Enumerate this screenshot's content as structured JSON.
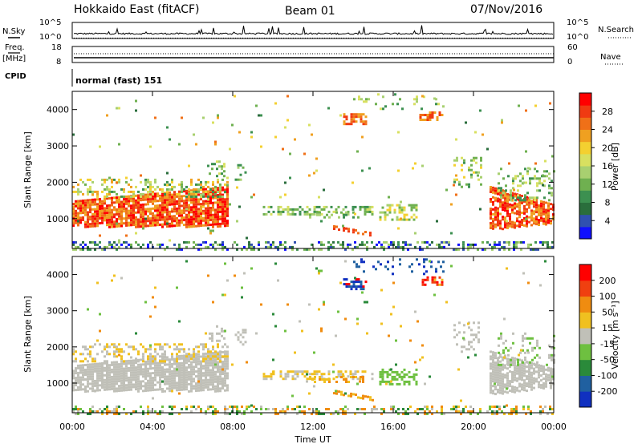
{
  "header": {
    "station": "Hokkaido East (fitACF)",
    "beam": "Beam 01",
    "date": "07/Nov/2016"
  },
  "side_labels": {
    "nsky": "N.Sky",
    "freq_line1": "Freq.",
    "freq_line2": "[MHz]",
    "cpid": "CPID",
    "nsearch": "N.Search",
    "nave": "Nave"
  },
  "cpid_value": "normal (fast) 151",
  "xaxis": {
    "label": "Time UT",
    "ticks": [
      "00:00",
      "04:00",
      "08:00",
      "12:00",
      "16:00",
      "20:00",
      "00:00"
    ]
  },
  "status_axes": {
    "noise_left": [
      "10^5",
      "10^0"
    ],
    "noise_right": [
      "10^5",
      "10^0"
    ],
    "freq_left": [
      "18",
      "8"
    ],
    "freq_right": [
      "60",
      "0"
    ]
  },
  "chart_data": [
    {
      "type": "heatmap",
      "title": "",
      "ylabel": "Slant Range [km]",
      "xlabel": "",
      "yticks": [
        "1000",
        "2000",
        "3000",
        "4000"
      ],
      "ylim": [
        180,
        4500
      ],
      "xlim": [
        "00:00",
        "24:00"
      ],
      "colorbar": {
        "label": "Power [dB]",
        "ticks": [
          "4",
          "8",
          "12",
          "16",
          "20",
          "24",
          "28"
        ],
        "range": [
          0,
          32
        ],
        "colors": [
          "#1010ff",
          "#3050b0",
          "#2a6e3c",
          "#3c9050",
          "#6fb050",
          "#a8d070",
          "#d8e060",
          "#f4d030",
          "#f0a020",
          "#f07018",
          "#f03a12",
          "#ff0000"
        ]
      }
    },
    {
      "type": "heatmap",
      "title": "",
      "ylabel": "Slant Range [km]",
      "xlabel": "Time UT",
      "yticks": [
        "1000",
        "2000",
        "3000",
        "4000"
      ],
      "ylim": [
        180,
        4500
      ],
      "xlim": [
        "00:00",
        "24:00"
      ],
      "colorbar": {
        "label": "Velocity [m s⁻¹]",
        "ticks": [
          "200",
          "100",
          "50",
          "15",
          "-15",
          "-50",
          "-100",
          "-200"
        ],
        "colors": [
          "#1030c0",
          "#2060a0",
          "#2a8a3a",
          "#6ec040",
          "#c0c0b8",
          "#f0c020",
          "#f08c10",
          "#f04010",
          "#ff0000"
        ]
      }
    }
  ]
}
